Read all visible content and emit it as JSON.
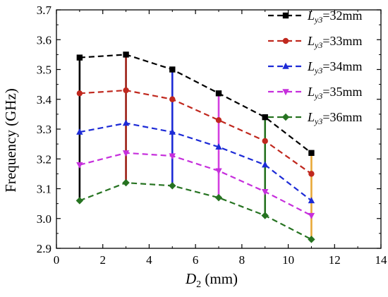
{
  "chart_data": {
    "type": "line",
    "xlabel": {
      "main": "D",
      "sub": "2",
      "unit": " (mm)"
    },
    "ylabel": "Frequency (GHz)",
    "xlim": [
      0,
      14
    ],
    "ylim": [
      2.9,
      3.7
    ],
    "x_ticks": [
      "0",
      "2",
      "4",
      "6",
      "8",
      "10",
      "12",
      "14"
    ],
    "y_ticks": [
      "2.9",
      "3.0",
      "3.1",
      "3.2",
      "3.3",
      "3.4",
      "3.5",
      "3.6",
      "3.7"
    ],
    "grid": false,
    "legend_position": "top-right",
    "x": [
      1,
      3,
      5,
      7,
      9,
      11
    ],
    "series": [
      {
        "label_main": "L",
        "label_sub": "y3",
        "label_value": "=32mm",
        "marker": "square",
        "color": "#000000",
        "values": [
          3.54,
          3.55,
          3.5,
          3.42,
          3.34,
          3.22
        ]
      },
      {
        "label_main": "L",
        "label_sub": "y3",
        "label_value": "=33mm",
        "marker": "circle",
        "color": "#c0281e",
        "values": [
          3.42,
          3.43,
          3.4,
          3.33,
          3.26,
          3.15
        ]
      },
      {
        "label_main": "L",
        "label_sub": "y3",
        "label_value": "=34mm",
        "marker": "triangle-up",
        "color": "#1d2bd6",
        "values": [
          3.29,
          3.32,
          3.29,
          3.24,
          3.18,
          3.06
        ]
      },
      {
        "label_main": "L",
        "label_sub": "y3",
        "label_value": "=35mm",
        "marker": "triangle-down",
        "color": "#c62fdc",
        "values": [
          3.18,
          3.22,
          3.21,
          3.16,
          3.09,
          3.01
        ]
      },
      {
        "label_main": "L",
        "label_sub": "y3",
        "label_value": "=36mm",
        "marker": "diamond",
        "color": "#267321",
        "values": [
          3.06,
          3.12,
          3.11,
          3.07,
          3.01,
          2.93
        ]
      }
    ],
    "vertical_bars": [
      {
        "x": 1,
        "color": "#000000"
      },
      {
        "x": 3,
        "color": "#9c1e14"
      },
      {
        "x": 5,
        "color": "#1d2bd6"
      },
      {
        "x": 7,
        "color": "#d33fe0"
      },
      {
        "x": 9,
        "color": "#267321"
      },
      {
        "x": 11,
        "color": "#e8a838"
      }
    ]
  }
}
